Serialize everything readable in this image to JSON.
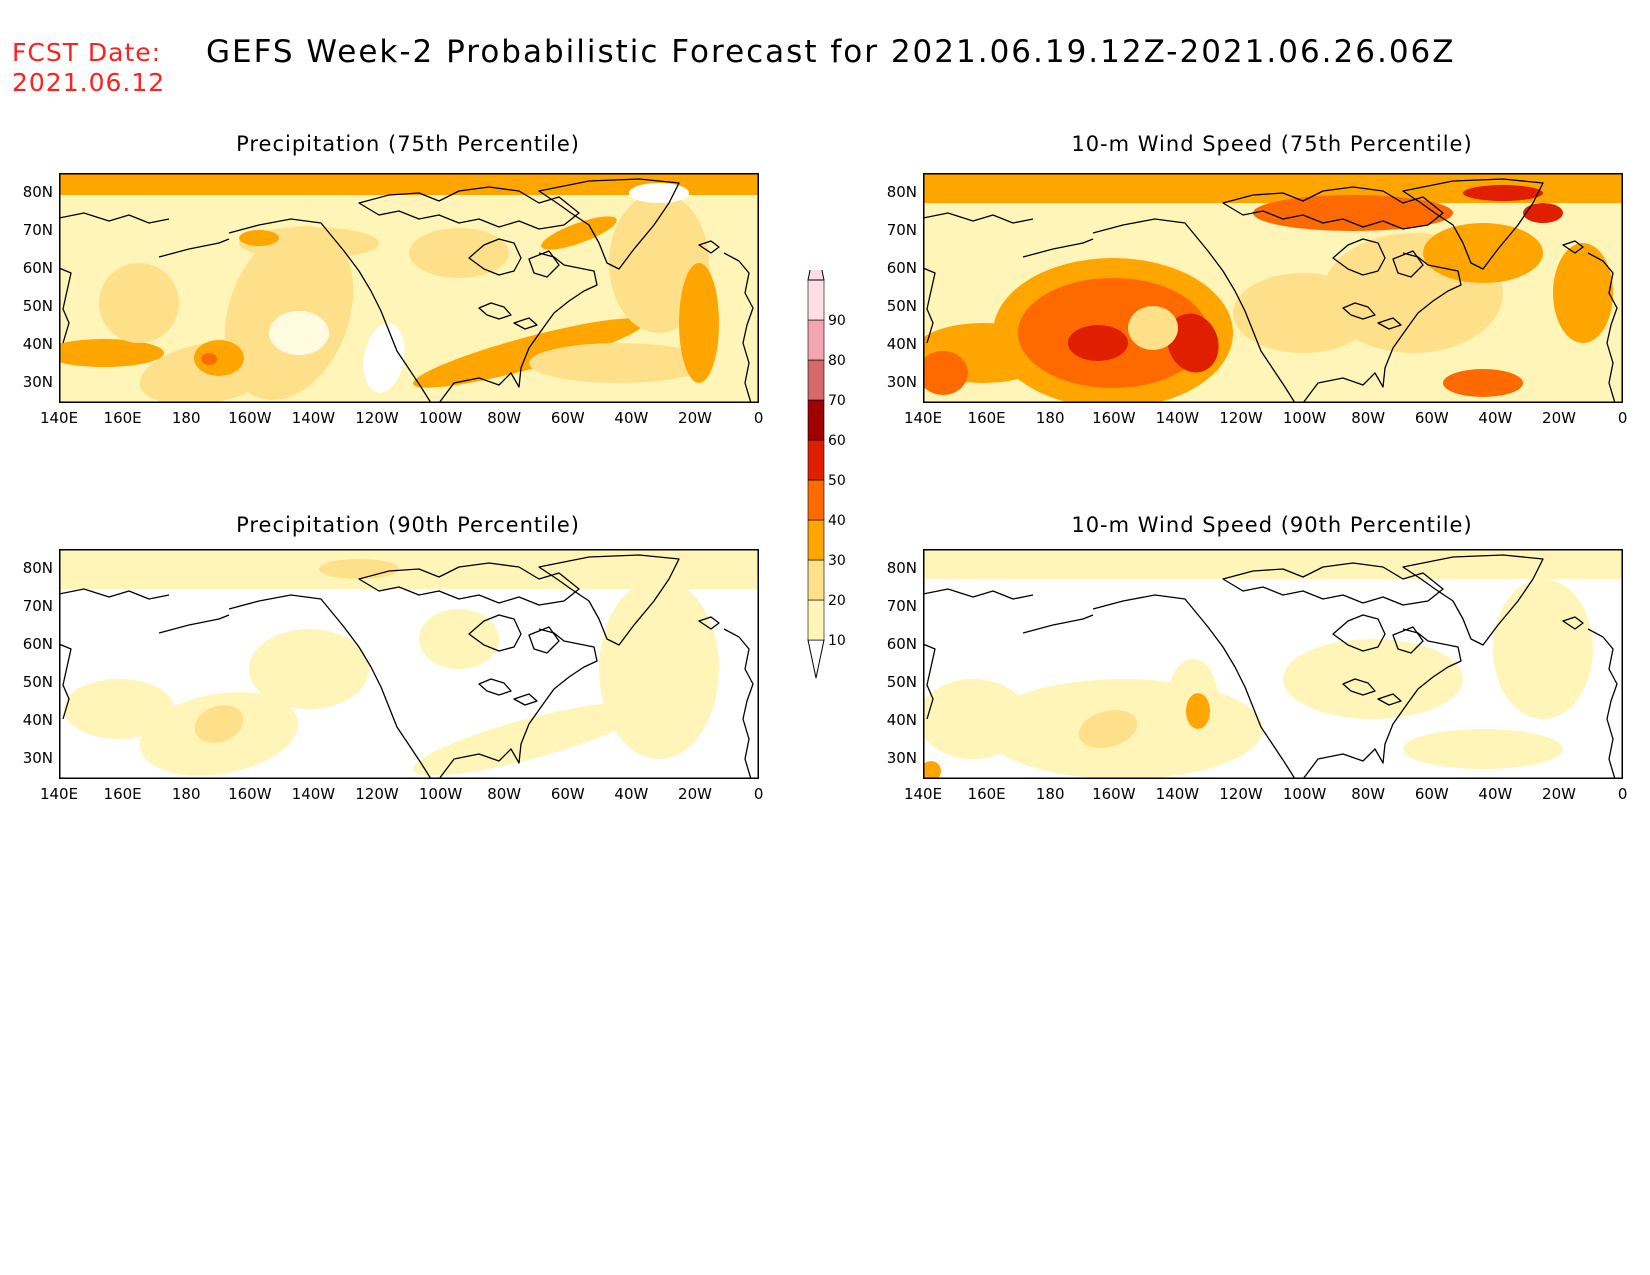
{
  "header": {
    "fcst_line1": "FCST Date:",
    "fcst_line2": "2021.06.12",
    "title": "GEFS Week-2 Probabilistic Forecast for 2021.06.19.12Z-2021.06.26.06Z"
  },
  "panels": [
    {
      "title": "Precipitation (75th Percentile)",
      "variable": "precipitation",
      "percentile": 75
    },
    {
      "title": "10-m Wind Speed (75th Percentile)",
      "variable": "wind",
      "percentile": 75
    },
    {
      "title": "Precipitation (90th Percentile)",
      "variable": "precipitation",
      "percentile": 90
    },
    {
      "title": "10-m Wind Speed (90th Percentile)",
      "variable": "wind",
      "percentile": 90
    }
  ],
  "lat_labels": [
    "80N",
    "70N",
    "60N",
    "50N",
    "40N",
    "30N"
  ],
  "lon_labels": [
    "140E",
    "160E",
    "180",
    "160W",
    "140W",
    "120W",
    "100W",
    "80W",
    "60W",
    "40W",
    "20W",
    "0"
  ],
  "colorbar": {
    "levels": [
      "10",
      "20",
      "30",
      "40",
      "50",
      "60",
      "70",
      "80",
      "90"
    ],
    "colors": [
      "#ffffff",
      "#fff5b8",
      "#ffe08a",
      "#ffa500",
      "#ff6a00",
      "#e01e00",
      "#a00000",
      "#d46a6a",
      "#f4a6b0",
      "#ffdde6"
    ]
  }
}
